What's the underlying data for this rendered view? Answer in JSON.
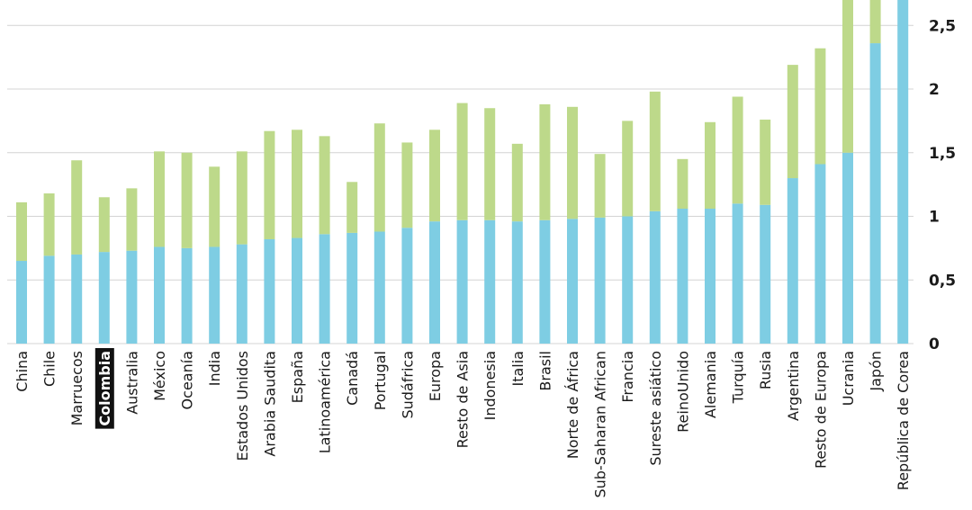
{
  "chart_data": {
    "type": "bar",
    "stacked": true,
    "categories": [
      "China",
      "Chile",
      "Marruecos",
      "Colombia",
      "Australia",
      "México",
      "Oceanía",
      "India",
      "Estados Unidos",
      "Arabia Saudita",
      "España",
      "Latinoamérica",
      "Canadá",
      "Portugal",
      "Sudáfrica",
      "Europa",
      "Resto de Asia",
      "Indonesia",
      "Italia",
      "Brasil",
      "Norte de África",
      "Sub-Saharan African",
      "Francia",
      "Sureste asiático",
      "ReinoUnido",
      "Alemania",
      "Turquía",
      "Rusia",
      "Argentina",
      "Resto de Europa",
      "Ucrania",
      "Japón",
      "República de Corea"
    ],
    "highlight_category": "Colombia",
    "series": [
      {
        "values": [
          0.65,
          0.69,
          0.7,
          0.72,
          0.73,
          0.76,
          0.75,
          0.76,
          0.78,
          0.82,
          0.83,
          0.86,
          0.87,
          0.88,
          0.91,
          0.96,
          0.97,
          0.97,
          0.96,
          0.97,
          0.98,
          0.99,
          1.0,
          1.04,
          1.06,
          1.06,
          1.1,
          1.09,
          1.3,
          1.41,
          1.5,
          2.36,
          2.7
        ]
      },
      {
        "values": [
          0.46,
          0.49,
          0.74,
          0.43,
          0.49,
          0.75,
          0.75,
          0.63,
          0.73,
          0.85,
          0.85,
          0.77,
          0.4,
          0.85,
          0.67,
          0.72,
          0.92,
          0.88,
          0.61,
          0.91,
          0.88,
          0.5,
          0.75,
          0.94,
          0.39,
          0.68,
          0.84,
          0.67,
          0.89,
          0.91,
          1.2,
          0.34,
          0.0
        ]
      }
    ],
    "colors": [
      "#7ecde3",
      "#bdd98a"
    ],
    "yticks": [
      "0",
      "0,5",
      "1",
      "1,5",
      "2",
      "2,5"
    ],
    "ytick_values": [
      0,
      0.5,
      1,
      1.5,
      2,
      2.5
    ],
    "ylim": [
      0,
      2.7
    ],
    "grid": true
  }
}
